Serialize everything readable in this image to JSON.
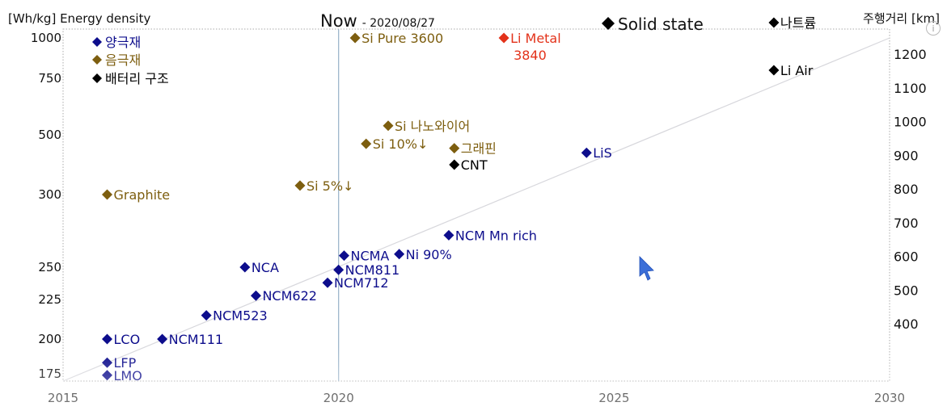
{
  "colors": {
    "navy": "#0d0d8c",
    "gold": "#7d5e0f",
    "black": "#000000",
    "red": "#e3321a",
    "grid": "#9fb7cc",
    "trend": "#d7d7dc",
    "cursor": "#3c6fd8"
  },
  "icons": {
    "info": "info-icon",
    "cursor": "mouse-pointer-icon"
  },
  "info_glyph": "i",
  "chart_data": {
    "type": "scatter",
    "title": "Now",
    "subtitle": "- 2020/08/27",
    "solid_state_label": "Solid state",
    "ylabel": "[Wh/kg] Energy density",
    "y2label": "주행거리 [km]",
    "xlim": [
      2015,
      2030
    ],
    "ylim": [
      170,
      1000
    ],
    "x_ticks": [
      "2015",
      "2020",
      "2025",
      "2030"
    ],
    "y_ticks": [
      {
        "value": 1000,
        "label": "1000"
      },
      {
        "value": 750,
        "label": "750"
      },
      {
        "value": 500,
        "label": "500"
      },
      {
        "value": 300,
        "label": "300"
      },
      {
        "value": 250,
        "label": "250"
      },
      {
        "value": 225,
        "label": "225"
      },
      {
        "value": 200,
        "label": "200"
      },
      {
        "value": 175,
        "label": "175"
      }
    ],
    "y2_ticks": [
      "1200",
      "1100",
      "1000",
      "900",
      "800",
      "700",
      "600",
      "500",
      "400"
    ],
    "now_line_x": 2020,
    "trendline": [
      [
        2015,
        170
      ],
      [
        2030,
        1000
      ]
    ],
    "legend": [
      {
        "label": "양극재",
        "color": "navy"
      },
      {
        "label": "음극재",
        "color": "gold"
      },
      {
        "label": "배터리 구조",
        "color": "black"
      }
    ],
    "points": [
      {
        "label": "LCO",
        "x": 2015.8,
        "y": 200,
        "color": "navy"
      },
      {
        "label": "LFP",
        "x": 2015.8,
        "y": 183,
        "color": "navy"
      },
      {
        "label": "LMO",
        "x": 2015.8,
        "y": 174,
        "color": "navy"
      },
      {
        "label": "NCM111",
        "x": 2016.8,
        "y": 200,
        "color": "navy"
      },
      {
        "label": "NCM523",
        "x": 2017.6,
        "y": 215,
        "color": "navy"
      },
      {
        "label": "NCM622",
        "x": 2018.5,
        "y": 228,
        "color": "navy"
      },
      {
        "label": "NCA",
        "x": 2018.3,
        "y": 250,
        "color": "navy"
      },
      {
        "label": "NCM712",
        "x": 2019.8,
        "y": 238,
        "color": "navy"
      },
      {
        "label": "NCM811",
        "x": 2020.0,
        "y": 248,
        "color": "navy"
      },
      {
        "label": "NCMA",
        "x": 2020.1,
        "y": 258,
        "color": "navy"
      },
      {
        "label": "Ni 90%",
        "x": 2021.1,
        "y": 259,
        "color": "navy"
      },
      {
        "label": "NCM Mn rich",
        "x": 2022.0,
        "y": 272,
        "color": "navy"
      },
      {
        "label": "LiS",
        "x": 2024.5,
        "y": 440,
        "color": "navy"
      },
      {
        "label": "Graphite",
        "x": 2015.8,
        "y": 300,
        "color": "gold"
      },
      {
        "label": "Si 5%↓",
        "x": 2019.3,
        "y": 330,
        "color": "gold"
      },
      {
        "label": "Si 10%↓",
        "x": 2020.5,
        "y": 470,
        "color": "gold"
      },
      {
        "label": "Si 나노와이어",
        "x": 2020.9,
        "y": 540,
        "color": "gold"
      },
      {
        "label": "그래핀",
        "x": 2022.1,
        "y": 455,
        "color": "gold"
      },
      {
        "label": "Si Pure  3600",
        "x": 2020.3,
        "y": 1000,
        "color": "gold"
      },
      {
        "label": "CNT",
        "x": 2022.1,
        "y": 400,
        "color": "black"
      },
      {
        "label": "Li Metal",
        "sublabel": "3840",
        "x": 2023.0,
        "y": 1000,
        "color": "red"
      },
      {
        "label": "Li Air",
        "x": 2027.9,
        "y": 800,
        "color": "black"
      },
      {
        "label": "나트륨",
        "x": 2027.9,
        "y": 1040,
        "color": "black"
      }
    ]
  }
}
